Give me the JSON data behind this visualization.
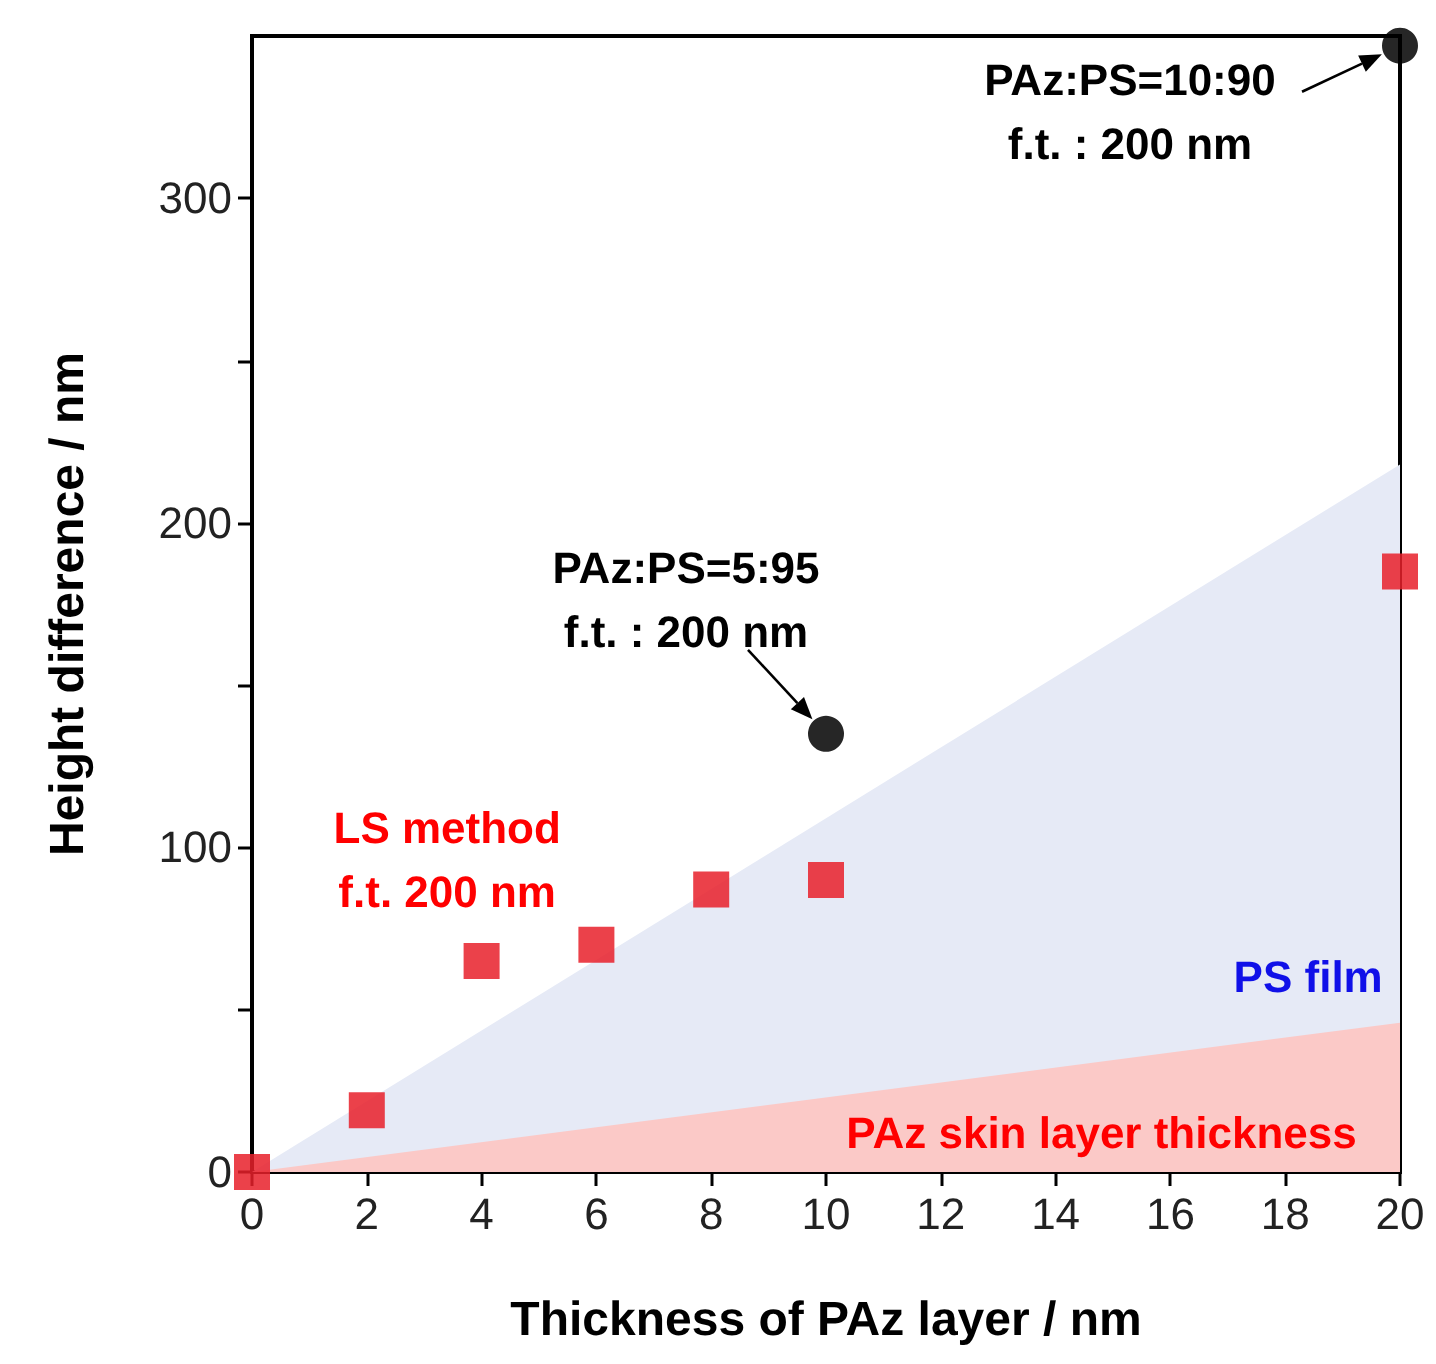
{
  "chart_data": {
    "type": "scatter",
    "xlabel": "Thickness of PAz layer / nm",
    "ylabel": "Height difference / nm",
    "xlim": [
      0,
      20
    ],
    "xticks": [
      0,
      2,
      4,
      6,
      8,
      10,
      12,
      14,
      16,
      18,
      20
    ],
    "ylim": [
      0,
      350
    ],
    "yticks": [
      0,
      {
        "value": 50,
        "label": null
      },
      100,
      {
        "value": 150,
        "label": null
      },
      200,
      {
        "value": 250,
        "label": null
      },
      300
    ],
    "grid": false,
    "series": [
      {
        "type": "area",
        "color": "#e6eaf6",
        "x": [
          0,
          20
        ],
        "values": [
          0,
          218
        ]
      },
      {
        "type": "area",
        "color": "#fbc9c7",
        "x": [
          0,
          20
        ],
        "values": [
          0,
          46
        ]
      },
      {
        "marker": "square",
        "color": "#e8202a",
        "x": [
          0,
          2,
          4,
          6,
          8,
          10,
          20
        ],
        "values": [
          0,
          19,
          65,
          70,
          87,
          90,
          185
        ]
      },
      {
        "marker": "circle",
        "color": "#000000",
        "x": [
          10,
          20
        ],
        "values": [
          135,
          347
        ]
      }
    ],
    "annotations": [
      "LS method\nf.t. 200 nm",
      "PS film",
      "PAz skin layer thickness",
      {
        "text": "PAz:PS=5:95\nf.t. : 200 nm",
        "x": 10,
        "y": 135
      },
      {
        "text": "PAz:PS=10:90\nf.t. : 200 nm",
        "x": 20,
        "y": 347
      }
    ]
  }
}
